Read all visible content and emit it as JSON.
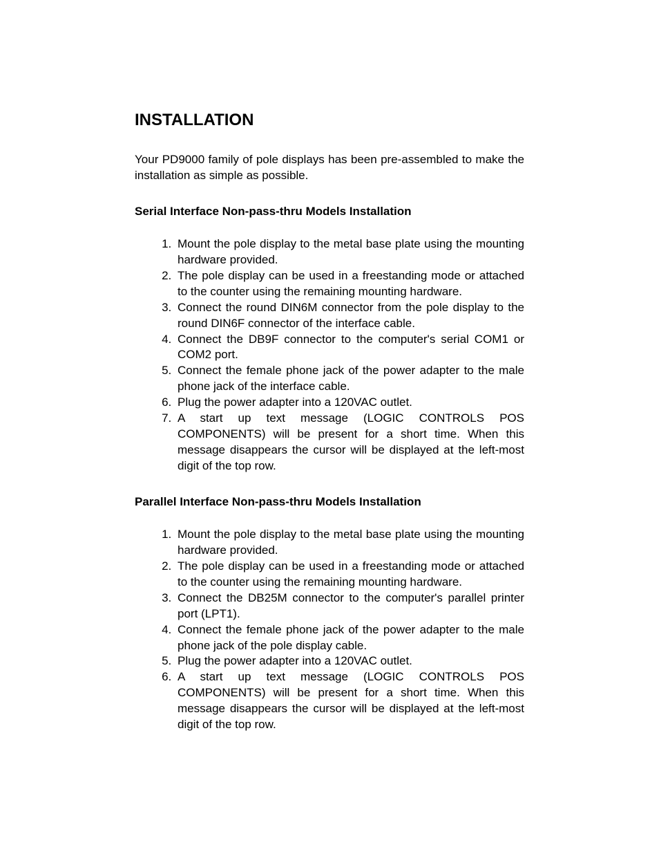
{
  "title": "INSTALLATION",
  "intro": "Your PD9000 family of pole displays has been pre-assembled to make the installation as simple as possible.",
  "section1": {
    "heading": "Serial Interface Non-pass-thru Models Installation",
    "steps": [
      "Mount the pole display to the metal base plate using the mounting hardware provided.",
      "The pole display can be used in a freestanding mode or attached to the counter using the remaining mounting hardware.",
      "Connect the round DIN6M connector from the pole display to the round DIN6F connector of the interface cable.",
      "Connect the DB9F connector to the computer's serial COM1 or COM2 port.",
      "Connect the female phone jack of the power adapter to the male phone jack of the interface cable.",
      "Plug the power adapter into a 120VAC outlet.",
      "A start up text message (LOGIC CONTROLS POS COMPONENTS) will be present for a short time. When this message disappears the cursor will be displayed at the left-most digit of the top row."
    ]
  },
  "section2": {
    "heading": "Parallel Interface Non-pass-thru Models Installation",
    "steps": [
      "Mount the pole display to the metal base plate using the mounting hardware provided.",
      "The pole display can be used in a freestanding mode or attached to the counter using the remaining mounting hardware.",
      "Connect the DB25M connector to the computer's parallel printer port (LPT1).",
      "Connect the female phone jack of the power adapter to the male phone jack of the pole display cable.",
      "Plug the power adapter into a 120VAC outlet.",
      "A start up text message (LOGIC CONTROLS POS COMPONENTS) will be present for a short time. When this message disappears the cursor will be displayed at the left-most digit of the top row."
    ]
  }
}
